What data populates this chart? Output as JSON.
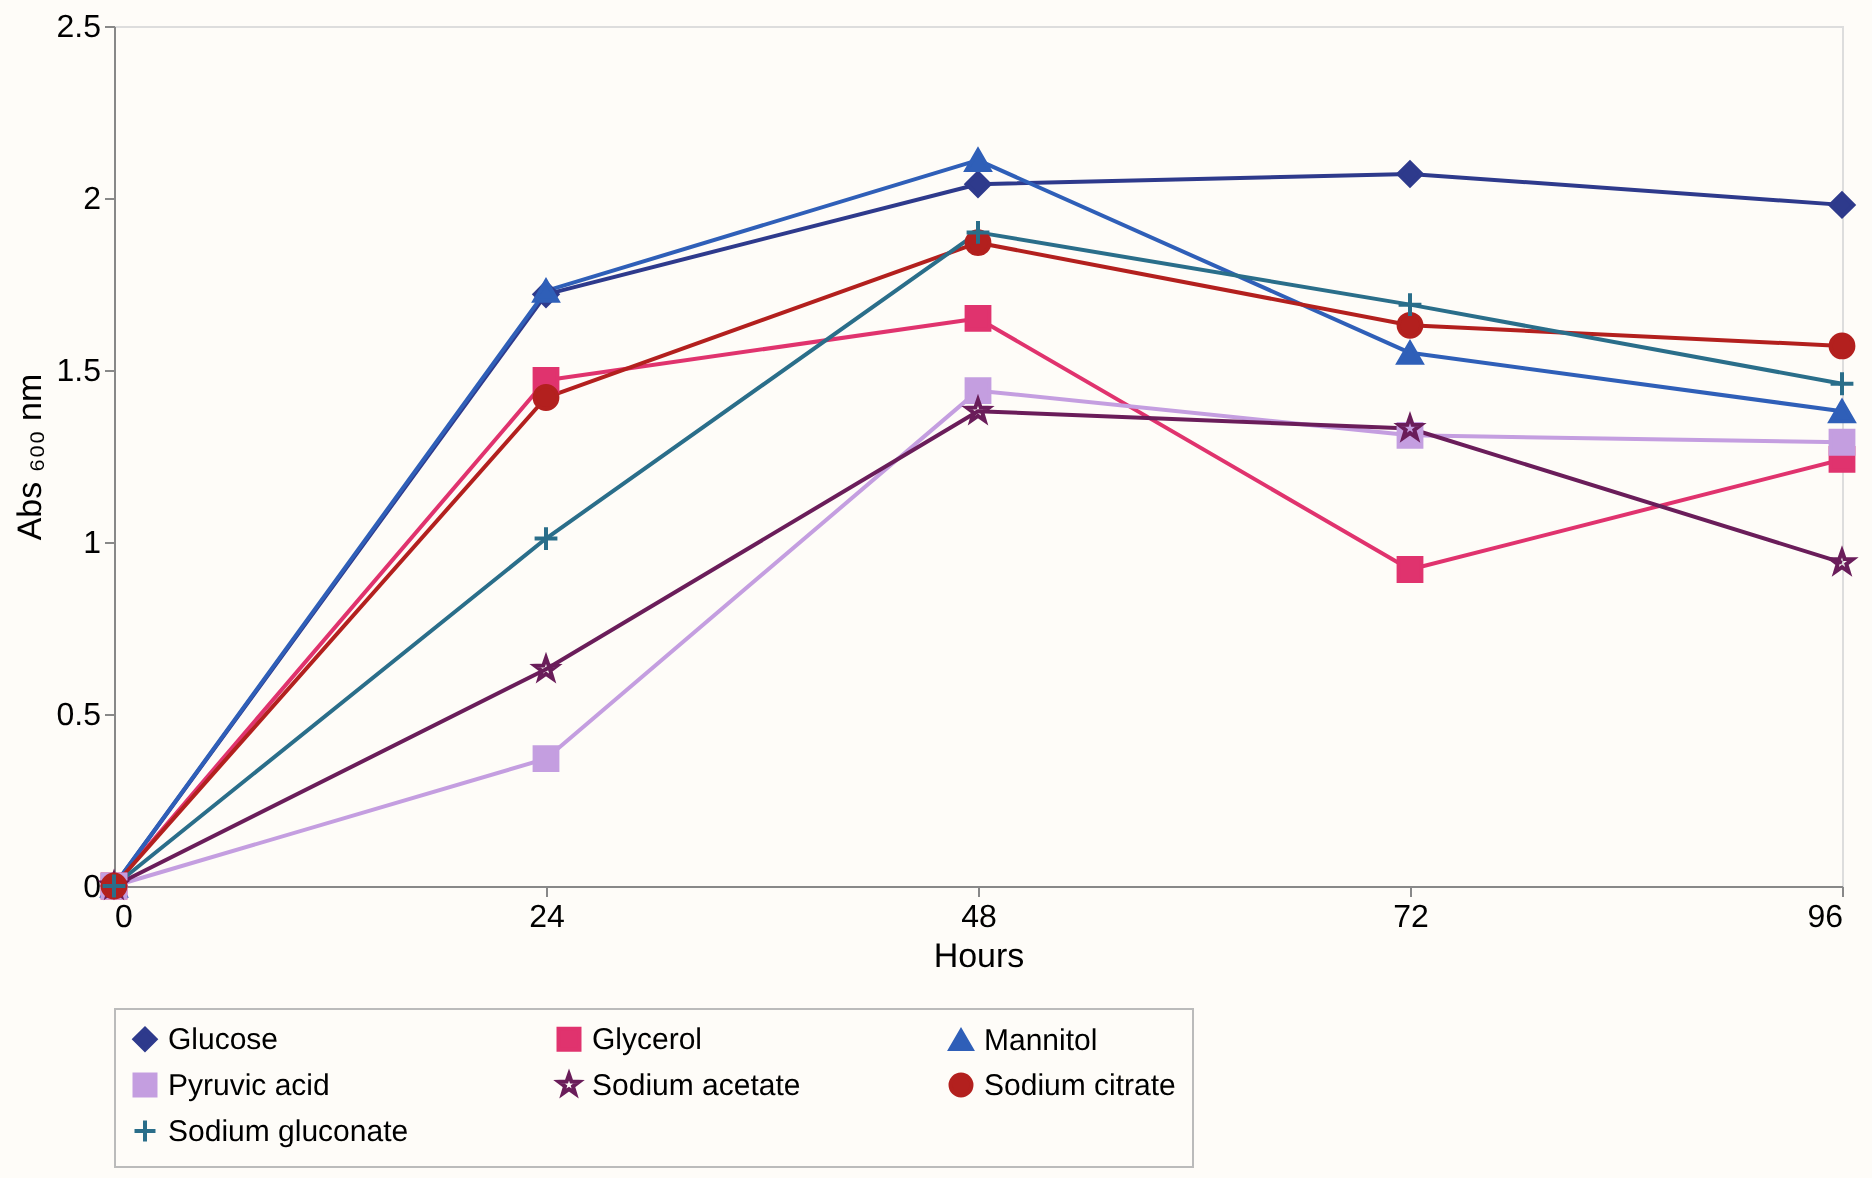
{
  "chart_data": {
    "type": "line",
    "xlabel": "Hours",
    "ylabel": "Abs ₆₀₀ nm",
    "x": [
      0,
      24,
      48,
      72,
      96
    ],
    "series": [
      {
        "name": "Glucose",
        "color": "#2e3a8c",
        "marker": "diamond",
        "values": [
          0,
          1.72,
          2.04,
          2.07,
          1.98
        ]
      },
      {
        "name": "Glycerol",
        "color": "#e0336e",
        "marker": "square",
        "values": [
          0,
          1.47,
          1.65,
          0.92,
          1.24
        ]
      },
      {
        "name": "Mannitol",
        "color": "#2f5fb8",
        "marker": "triangle",
        "values": [
          0,
          1.73,
          2.11,
          1.55,
          1.38
        ]
      },
      {
        "name": "Pyruvic acid",
        "color": "#c49ee0",
        "marker": "square",
        "values": [
          0,
          0.37,
          1.44,
          1.31,
          1.29
        ]
      },
      {
        "name": "Sodium acetate",
        "color": "#6a1d5a",
        "marker": "star",
        "values": [
          0,
          0.63,
          1.38,
          1.33,
          0.94
        ]
      },
      {
        "name": "Sodium citrate",
        "color": "#b3201e",
        "marker": "circle",
        "values": [
          0,
          1.42,
          1.87,
          1.63,
          1.57
        ]
      },
      {
        "name": "Sodium gluconate",
        "color": "#2a6e8a",
        "marker": "cross",
        "values": [
          0,
          1.01,
          1.9,
          1.69,
          1.46
        ]
      }
    ],
    "xlim": [
      0,
      96
    ],
    "xticks": [
      0,
      24,
      48,
      72,
      96
    ],
    "ylim": [
      0,
      2.5
    ],
    "yticks": [
      0,
      0.5,
      1,
      1.5,
      2,
      2.5
    ],
    "grid": false,
    "legend": "bottom",
    "line_style": "solid"
  }
}
